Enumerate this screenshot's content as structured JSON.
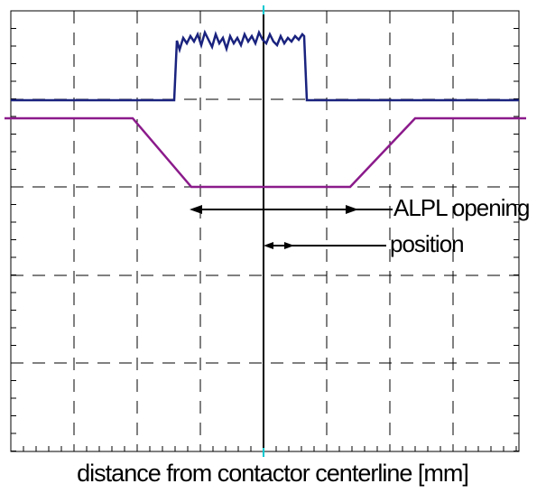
{
  "annotations": {
    "opening": "ALPL opening",
    "position": "position"
  },
  "x_label": "distance from contactor centerline [mm]"
}
